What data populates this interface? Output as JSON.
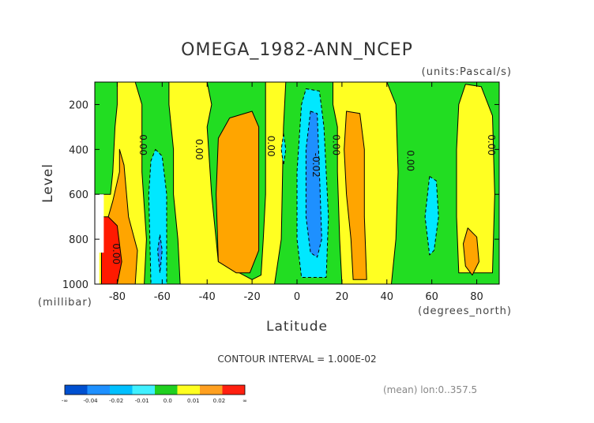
{
  "chart_data": {
    "type": "contour",
    "title": "OMEGA_1982-ANN_NCEP",
    "units_label": "(units:Pascal/s)",
    "xlabel": "Latitude",
    "xunits": "(degrees_north)",
    "ylabel": "Level",
    "yunits": "(millibar)",
    "xlim": [
      -90,
      90
    ],
    "ylim": [
      1000,
      100
    ],
    "x_ticks": [
      -80,
      -60,
      -40,
      -20,
      0,
      20,
      40,
      60,
      80
    ],
    "x_tick_labels": [
      "-80",
      "-60",
      "-40",
      "-20",
      "0",
      "20",
      "40",
      "60",
      "80"
    ],
    "y_ticks": [
      200,
      400,
      600,
      800,
      1000
    ],
    "y_tick_labels": [
      "200",
      "400",
      "600",
      "800",
      "1000"
    ],
    "contour_interval_text": "CONTOUR INTERVAL = 1.000E-02",
    "mean_text": "(mean) lon:0..357.5",
    "contour_labels": [
      {
        "text": "0.00",
        "x": -70,
        "y": 380
      },
      {
        "text": "0.00",
        "x": -45,
        "y": 400
      },
      {
        "text": "0.00",
        "x": -13,
        "y": 385
      },
      {
        "text": "0.00",
        "x": 16,
        "y": 380
      },
      {
        "text": "-0.02",
        "x": 7,
        "y": 470
      },
      {
        "text": "0.00",
        "x": 49,
        "y": 450
      },
      {
        "text": "0.00",
        "x": 85,
        "y": 380
      },
      {
        "text": "0.00",
        "x": -82,
        "y": 865
      }
    ],
    "regions": [
      {
        "level": "0.01",
        "points": [
          [
            -80,
            100
          ],
          [
            -72,
            100
          ],
          [
            -69,
            200
          ],
          [
            -69,
            500
          ],
          [
            -67,
            800
          ],
          [
            -68,
            1000
          ],
          [
            -90,
            1000
          ],
          [
            -90,
            600
          ],
          [
            -83,
            600
          ],
          [
            -82,
            500
          ],
          [
            -81,
            300
          ],
          [
            -80,
            200
          ]
        ]
      },
      {
        "level": "0.02",
        "points": [
          [
            -79,
            400
          ],
          [
            -77,
            470
          ],
          [
            -75,
            700
          ],
          [
            -71,
            850
          ],
          [
            -72,
            1000
          ],
          [
            -83,
            1000
          ],
          [
            -84,
            700
          ],
          [
            -82,
            630
          ],
          [
            -79,
            500
          ]
        ]
      },
      {
        "level": "0.03",
        "points": [
          [
            -84,
            700
          ],
          [
            -80,
            740
          ],
          [
            -78,
            900
          ],
          [
            -80,
            1000
          ],
          [
            -87,
            1000
          ],
          [
            -87,
            700
          ]
        ]
      },
      {
        "level": "-0.01",
        "points": [
          [
            -63,
            400
          ],
          [
            -60,
            430
          ],
          [
            -58,
            600
          ],
          [
            -58,
            1000
          ],
          [
            -65,
            1000
          ],
          [
            -66,
            600
          ],
          [
            -65,
            450
          ]
        ]
      },
      {
        "level": "-0.02",
        "points": [
          [
            -61,
            780
          ],
          [
            -60,
            850
          ],
          [
            -61,
            950
          ],
          [
            -62,
            850
          ]
        ]
      },
      {
        "level": "0.01",
        "points": [
          [
            -57,
            100
          ],
          [
            -40,
            100
          ],
          [
            -38,
            200
          ],
          [
            -40,
            300
          ],
          [
            -38,
            600
          ],
          [
            -35,
            900
          ],
          [
            -20,
            980
          ],
          [
            -16,
            960
          ],
          [
            -15,
            800
          ],
          [
            -14,
            600
          ],
          [
            -14,
            100
          ],
          [
            -5,
            100
          ],
          [
            -6,
            300
          ],
          [
            -7,
            800
          ],
          [
            -10,
            1000
          ],
          [
            -52,
            1000
          ],
          [
            -53,
            800
          ],
          [
            -55,
            600
          ],
          [
            -55,
            400
          ],
          [
            -57,
            200
          ]
        ]
      },
      {
        "level": "0.02",
        "points": [
          [
            -35,
            350
          ],
          [
            -30,
            260
          ],
          [
            -20,
            230
          ],
          [
            -17,
            300
          ],
          [
            -17,
            600
          ],
          [
            -17,
            850
          ],
          [
            -21,
            950
          ],
          [
            -27,
            950
          ],
          [
            -35,
            900
          ],
          [
            -36,
            600
          ]
        ]
      },
      {
        "level": "-0.01",
        "points": [
          [
            -6,
            330
          ],
          [
            -5,
            400
          ],
          [
            -6,
            470
          ],
          [
            -7,
            400
          ]
        ]
      },
      {
        "level": "-0.01",
        "points": [
          [
            4,
            130
          ],
          [
            10,
            140
          ],
          [
            12,
            300
          ],
          [
            14,
            700
          ],
          [
            13,
            970
          ],
          [
            2,
            970
          ],
          [
            0,
            800
          ],
          [
            0,
            500
          ],
          [
            2,
            200
          ]
        ]
      },
      {
        "level": "-0.02",
        "points": [
          [
            6,
            230
          ],
          [
            9,
            240
          ],
          [
            10,
            500
          ],
          [
            11,
            800
          ],
          [
            9,
            880
          ],
          [
            6,
            860
          ],
          [
            4,
            700
          ],
          [
            4,
            400
          ]
        ]
      },
      {
        "level": "0.01",
        "points": [
          [
            16,
            100
          ],
          [
            40,
            100
          ],
          [
            44,
            200
          ],
          [
            45,
            500
          ],
          [
            44,
            800
          ],
          [
            42,
            1000
          ],
          [
            20,
            1000
          ],
          [
            19,
            800
          ],
          [
            18,
            500
          ],
          [
            18,
            300
          ],
          [
            16,
            200
          ]
        ]
      },
      {
        "level": "0.02",
        "points": [
          [
            22,
            230
          ],
          [
            28,
            240
          ],
          [
            30,
            400
          ],
          [
            30,
            700
          ],
          [
            31,
            980
          ],
          [
            25,
            980
          ],
          [
            24,
            800
          ],
          [
            22,
            600
          ],
          [
            21,
            400
          ]
        ]
      },
      {
        "level": "-0.01",
        "points": [
          [
            59,
            520
          ],
          [
            62,
            540
          ],
          [
            63,
            700
          ],
          [
            61,
            850
          ],
          [
            59,
            870
          ],
          [
            57,
            700
          ]
        ]
      },
      {
        "level": "0.01",
        "points": [
          [
            75,
            110
          ],
          [
            82,
            120
          ],
          [
            87,
            250
          ],
          [
            88,
            600
          ],
          [
            87,
            950
          ],
          [
            72,
            950
          ],
          [
            71,
            700
          ],
          [
            71,
            400
          ],
          [
            72,
            200
          ]
        ]
      },
      {
        "level": "0.02",
        "points": [
          [
            76,
            750
          ],
          [
            80,
            790
          ],
          [
            81,
            900
          ],
          [
            78,
            960
          ],
          [
            75,
            920
          ],
          [
            74,
            820
          ]
        ]
      }
    ],
    "legend": {
      "ticks": [
        "-∞",
        "-0.04",
        "-0.02",
        "-0.01",
        "0.0",
        "0.01",
        "0.02",
        "∞"
      ],
      "colors": [
        "#0050d0",
        "#1e90ff",
        "#00c0ff",
        "#40f0ff",
        "#20d020",
        "#ffff20",
        "#ffa020",
        "#ff2010"
      ]
    },
    "level_colors": {
      "-0.02": "#1e90ff",
      "-0.01": "#00e8ff",
      "0.0": "#22dd22",
      "0.01": "#ffff22",
      "0.02": "#ffa500",
      "0.03": "#ff1a00"
    }
  }
}
